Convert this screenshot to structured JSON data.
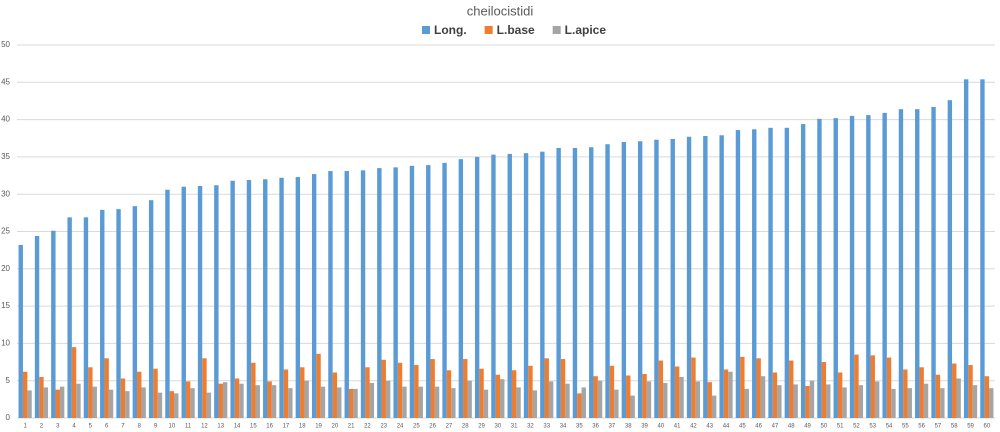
{
  "chart_data": {
    "type": "bar",
    "title": "cheilocistidi",
    "categories": [
      "1",
      "2",
      "3",
      "4",
      "5",
      "6",
      "7",
      "8",
      "9",
      "10",
      "11",
      "12",
      "13",
      "14",
      "15",
      "16",
      "17",
      "18",
      "19",
      "20",
      "21",
      "22",
      "23",
      "24",
      "25",
      "26",
      "27",
      "28",
      "29",
      "30",
      "31",
      "32",
      "33",
      "34",
      "35",
      "36",
      "37",
      "38",
      "39",
      "40",
      "41",
      "42",
      "43",
      "44",
      "45",
      "46",
      "47",
      "48",
      "49",
      "50",
      "51",
      "52",
      "53",
      "54",
      "55",
      "56",
      "57",
      "58",
      "59",
      "60"
    ],
    "series": [
      {
        "name": "Long.",
        "color": "#5b9bd5",
        "values": [
          23.2,
          24.4,
          25.1,
          26.9,
          26.9,
          27.9,
          28.0,
          28.4,
          29.2,
          30.6,
          31.0,
          31.1,
          31.2,
          31.8,
          31.9,
          32.0,
          32.2,
          32.3,
          32.7,
          33.1,
          33.1,
          33.2,
          33.5,
          33.6,
          33.8,
          33.9,
          34.2,
          34.7,
          35.0,
          35.3,
          35.4,
          35.5,
          35.7,
          36.2,
          36.2,
          36.3,
          36.7,
          37.0,
          37.1,
          37.3,
          37.4,
          37.7,
          37.8,
          37.9,
          38.6,
          38.7,
          38.9,
          38.9,
          39.4,
          40.1,
          40.2,
          40.5,
          40.6,
          40.9,
          41.4,
          41.4,
          41.7,
          42.6,
          45.4,
          45.4
        ]
      },
      {
        "name": "L.base",
        "color": "#ed7d31",
        "values": [
          6.2,
          5.5,
          3.8,
          9.5,
          6.8,
          8,
          5.3,
          6.2,
          6.6,
          3.6,
          4.9,
          8,
          4.6,
          5.3,
          7.4,
          4.9,
          6.5,
          6.8,
          8.6,
          6.1,
          3.9,
          6.8,
          7.8,
          7.4,
          7.1,
          7.9,
          6.4,
          7.9,
          6.6,
          5.8,
          6.4,
          7,
          8,
          7.9,
          3.3,
          5.6,
          7,
          5.7,
          5.9,
          7.7,
          6.9,
          8.1,
          4.8,
          6.5,
          8.2,
          8,
          6.1,
          7.7,
          4.3,
          7.5,
          6.1,
          8.5,
          8.4,
          8.1,
          6.5,
          6.8,
          5.8,
          7.3,
          7.1,
          5.6
        ]
      },
      {
        "name": "L.apice",
        "color": "#a5a5a5",
        "values": [
          3.7,
          4.1,
          4.2,
          4.6,
          4.2,
          3.8,
          3.6,
          4.1,
          3.4,
          3.3,
          4,
          3.4,
          4.8,
          4.6,
          4.4,
          4.4,
          4,
          5,
          4.2,
          4.1,
          3.9,
          4.7,
          5,
          4.2,
          4.2,
          4.2,
          4,
          5,
          3.8,
          5.2,
          4.1,
          3.7,
          4.9,
          4.6,
          4.1,
          5,
          3.8,
          3,
          4.9,
          4.7,
          5.5,
          4.9,
          3,
          6.2,
          3.9,
          5.6,
          4.4,
          4.5,
          5,
          4.5,
          4.1,
          4.4,
          4.9,
          3.9,
          4,
          4.6,
          4,
          5.3,
          4.4,
          4
        ]
      }
    ],
    "ylim": [
      0,
      50
    ],
    "yticks": [
      0,
      5,
      10,
      15,
      20,
      25,
      30,
      35,
      40,
      45,
      50
    ],
    "grid": true,
    "legend": "top"
  }
}
